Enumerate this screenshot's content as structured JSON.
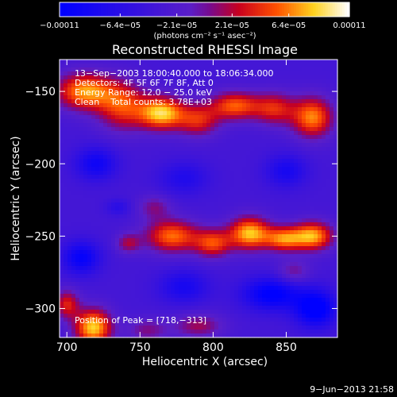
{
  "chart_data": {
    "type": "heatmap",
    "title": "Reconstructed RHESSI Image",
    "xlabel": "Heliocentric X (arcsec)",
    "ylabel": "Heliocentric Y (arcsec)",
    "xlim": [
      695,
      885
    ],
    "ylim": [
      -320,
      -128
    ],
    "x_ticks": [
      700,
      750,
      800,
      850
    ],
    "y_ticks": [
      -150,
      -200,
      -250,
      -300
    ],
    "x_tick_labels": [
      "700",
      "750",
      "800",
      "850"
    ],
    "y_tick_labels": [
      "−150",
      "−200",
      "−250",
      "−300"
    ],
    "colorbar": {
      "min": -0.00011,
      "max": 0.00011,
      "ticks": [
        -0.00011,
        -6.4e-05,
        -2.1e-05,
        2.1e-05,
        6.4e-05,
        0.00011
      ],
      "tick_labels": [
        "−0.00011",
        "−6.4e−05",
        "−2.1e−05",
        "2.1e−05",
        "6.4e−05",
        "0.00011"
      ],
      "unit_label": "(photons cm⁻² s⁻¹ asec⁻²)"
    },
    "annotations": [
      "13−Sep−2003 18:00:40.000 to 18:06:34.000",
      "Detectors: 4F 5F 6F 7F 8F, Att 0",
      "Energy Range: 12.0 − 25.0 keV",
      "Clean    Total counts: 3.78E+03"
    ],
    "peak_label": "Position of Peak = [718,−313]",
    "footer_date": "9−Jun−2013 21:58",
    "blobs": [
      {
        "x": 712,
        "y": -150,
        "sx": 14,
        "sy": 9,
        "v": 9.5e-05
      },
      {
        "x": 738,
        "y": -160,
        "sx": 12,
        "sy": 12,
        "v": 7e-05
      },
      {
        "x": 765,
        "y": -165,
        "sx": 11,
        "sy": 8,
        "v": 0.00011
      },
      {
        "x": 790,
        "y": -170,
        "sx": 10,
        "sy": 8,
        "v": 6e-05
      },
      {
        "x": 815,
        "y": -160,
        "sx": 12,
        "sy": 7,
        "v": 8e-05
      },
      {
        "x": 842,
        "y": -162,
        "sx": 10,
        "sy": 8,
        "v": 6e-05
      },
      {
        "x": 868,
        "y": -168,
        "sx": 10,
        "sy": 10,
        "v": 9e-05
      },
      {
        "x": 760,
        "y": -230,
        "sx": 8,
        "sy": 6,
        "v": 3e-05
      },
      {
        "x": 742,
        "y": -255,
        "sx": 6,
        "sy": 5,
        "v": 4e-05
      },
      {
        "x": 772,
        "y": -250,
        "sx": 13,
        "sy": 8,
        "v": 8.5e-05
      },
      {
        "x": 800,
        "y": -255,
        "sx": 9,
        "sy": 7,
        "v": 7e-05
      },
      {
        "x": 825,
        "y": -248,
        "sx": 10,
        "sy": 8,
        "v": 0.000105
      },
      {
        "x": 848,
        "y": -252,
        "sx": 9,
        "sy": 6,
        "v": 8e-05
      },
      {
        "x": 868,
        "y": -250,
        "sx": 10,
        "sy": 7,
        "v": 0.0001
      },
      {
        "x": 855,
        "y": -275,
        "sx": 8,
        "sy": 6,
        "v": 3e-05
      },
      {
        "x": 700,
        "y": -297,
        "sx": 6,
        "sy": 7,
        "v": 6e-05
      },
      {
        "x": 718,
        "y": -313,
        "sx": 9,
        "sy": 9,
        "v": 0.00011
      },
      {
        "x": 755,
        "y": -315,
        "sx": 10,
        "sy": 6,
        "v": 3e-05
      },
      {
        "x": 790,
        "y": -312,
        "sx": 12,
        "sy": 6,
        "v": 4e-05
      },
      {
        "x": 720,
        "y": -200,
        "sx": 10,
        "sy": 8,
        "v": -7e-05
      },
      {
        "x": 780,
        "y": -210,
        "sx": 12,
        "sy": 8,
        "v": -5e-05
      },
      {
        "x": 850,
        "y": -205,
        "sx": 10,
        "sy": 8,
        "v": -6e-05
      },
      {
        "x": 710,
        "y": -265,
        "sx": 9,
        "sy": 8,
        "v": -8e-05
      },
      {
        "x": 780,
        "y": -285,
        "sx": 12,
        "sy": 8,
        "v": -6e-05
      },
      {
        "x": 840,
        "y": -290,
        "sx": 14,
        "sy": 8,
        "v": -9e-05
      },
      {
        "x": 870,
        "y": -300,
        "sx": 10,
        "sy": 9,
        "v": -0.0001
      },
      {
        "x": 735,
        "y": -230,
        "sx": 6,
        "sy": 4,
        "v": -4e-05
      }
    ],
    "base_level": -3.5e-05
  }
}
